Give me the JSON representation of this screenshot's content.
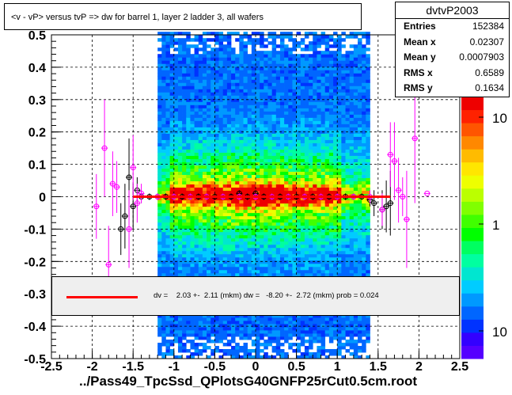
{
  "title": "<v - vP>       versus  tvP =>  dw for barrel 1, layer 2 ladder 3, all wafers",
  "footer": "../Pass49_TpcSsd_QPlotsG40GNFP25rCut0.5cm.root",
  "stats": {
    "name": "dvtvP2003",
    "rows": [
      {
        "key": "Entries",
        "value": "152384"
      },
      {
        "key": "Mean x",
        "value": "0.02307"
      },
      {
        "key": "Mean y",
        "value": "0.0007903"
      },
      {
        "key": "RMS x",
        "value": "0.6589"
      },
      {
        "key": "RMS y",
        "value": "0.1634"
      }
    ]
  },
  "fit_text": "dv =    2.03 +-  2.11 (mkm) dw =   -8.20 +-  2.72 (mkm) prob = 0.024",
  "chart_data": {
    "type": "heatmap",
    "xlim": [
      -2.5,
      2.5
    ],
    "ylim": [
      -0.5,
      0.5
    ],
    "x_ticks": [
      "-2.5",
      "-2",
      "-1.5",
      "-1",
      "-0.5",
      "0",
      "0.5",
      "1",
      "1.5",
      "2",
      "2.5"
    ],
    "y_ticks": [
      "-0.5",
      "-0.4",
      "-0.3",
      "-0.2",
      "-0.1",
      "0",
      "0.1",
      "0.2",
      "0.3",
      "0.4",
      "0.5"
    ],
    "z_scale": "log",
    "z_ticks": [
      "10",
      "1",
      "10"
    ],
    "grid": true,
    "fit_line": {
      "x": [
        -1.5,
        1.65
      ],
      "y": [
        0,
        0
      ],
      "color": "#ff0000"
    },
    "profile_black": [
      {
        "x": -1.65,
        "y": -0.1,
        "err": 0.08
      },
      {
        "x": -1.6,
        "y": -0.06,
        "err": 0.1
      },
      {
        "x": -1.55,
        "y": 0.06,
        "err": 0.12
      },
      {
        "x": -1.5,
        "y": -0.03,
        "err": 0.07
      },
      {
        "x": -1.45,
        "y": 0.02,
        "err": 0.04
      },
      {
        "x": -1.4,
        "y": 0.0,
        "err": 0.02
      },
      {
        "x": -1.3,
        "y": 0.0,
        "err": 0.01
      },
      {
        "x": -1.2,
        "y": 0.0,
        "err": 0.01
      },
      {
        "x": -1.1,
        "y": 0.0,
        "err": 0.01
      },
      {
        "x": -1.0,
        "y": 0.0,
        "err": 0.01
      },
      {
        "x": -0.9,
        "y": 0.0,
        "err": 0.01
      },
      {
        "x": -0.8,
        "y": 0.0,
        "err": 0.01
      },
      {
        "x": -0.7,
        "y": 0.0,
        "err": 0.01
      },
      {
        "x": -0.6,
        "y": 0.0,
        "err": 0.01
      },
      {
        "x": -0.5,
        "y": 0.0,
        "err": 0.01
      },
      {
        "x": -0.4,
        "y": 0.0,
        "err": 0.01
      },
      {
        "x": -0.3,
        "y": 0.0,
        "err": 0.01
      },
      {
        "x": -0.2,
        "y": 0.01,
        "err": 0.01
      },
      {
        "x": -0.1,
        "y": 0.0,
        "err": 0.01
      },
      {
        "x": 0.0,
        "y": 0.01,
        "err": 0.01
      },
      {
        "x": 0.1,
        "y": 0.0,
        "err": 0.01
      },
      {
        "x": 0.2,
        "y": 0.0,
        "err": 0.01
      },
      {
        "x": 0.3,
        "y": 0.0,
        "err": 0.01
      },
      {
        "x": 0.4,
        "y": 0.0,
        "err": 0.01
      },
      {
        "x": 0.5,
        "y": 0.0,
        "err": 0.01
      },
      {
        "x": 0.6,
        "y": 0.0,
        "err": 0.01
      },
      {
        "x": 0.7,
        "y": 0.0,
        "err": 0.01
      },
      {
        "x": 0.8,
        "y": 0.0,
        "err": 0.01
      },
      {
        "x": 0.9,
        "y": 0.0,
        "err": 0.01
      },
      {
        "x": 1.0,
        "y": 0.0,
        "err": 0.01
      },
      {
        "x": 1.1,
        "y": 0.0,
        "err": 0.01
      },
      {
        "x": 1.2,
        "y": 0.0,
        "err": 0.01
      },
      {
        "x": 1.3,
        "y": 0.0,
        "err": 0.01
      },
      {
        "x": 1.4,
        "y": -0.01,
        "err": 0.02
      },
      {
        "x": 1.45,
        "y": -0.02,
        "err": 0.04
      },
      {
        "x": 1.55,
        "y": -0.04,
        "err": 0.06
      },
      {
        "x": 1.6,
        "y": -0.03,
        "err": 0.08
      },
      {
        "x": 1.65,
        "y": -0.02,
        "err": 0.1
      }
    ],
    "profile_magenta": [
      {
        "x": -1.95,
        "y": -0.03,
        "err": 0.1
      },
      {
        "x": -1.85,
        "y": 0.15,
        "err": 0.15
      },
      {
        "x": -1.8,
        "y": -0.21,
        "err": 0.12
      },
      {
        "x": -1.75,
        "y": 0.04,
        "err": 0.1
      },
      {
        "x": -1.7,
        "y": 0.03,
        "err": 0.08
      },
      {
        "x": -1.55,
        "y": -0.1,
        "err": 0.12
      },
      {
        "x": -1.5,
        "y": 0.09,
        "err": 0.1
      },
      {
        "x": -1.45,
        "y": -0.02,
        "err": 0.06
      },
      {
        "x": -1.4,
        "y": 0.01,
        "err": 0.03
      },
      {
        "x": -1.2,
        "y": 0.0,
        "err": 0.01
      },
      {
        "x": -1.0,
        "y": 0.0,
        "err": 0.01
      },
      {
        "x": -0.8,
        "y": 0.0,
        "err": 0.01
      },
      {
        "x": -0.6,
        "y": 0.0,
        "err": 0.01
      },
      {
        "x": -0.4,
        "y": 0.0,
        "err": 0.01
      },
      {
        "x": -0.2,
        "y": 0.0,
        "err": 0.01
      },
      {
        "x": 0.0,
        "y": 0.0,
        "err": 0.01
      },
      {
        "x": 0.2,
        "y": 0.0,
        "err": 0.01
      },
      {
        "x": 0.4,
        "y": 0.0,
        "err": 0.01
      },
      {
        "x": 0.6,
        "y": 0.0,
        "err": 0.01
      },
      {
        "x": 0.8,
        "y": 0.0,
        "err": 0.01
      },
      {
        "x": 1.0,
        "y": 0.0,
        "err": 0.01
      },
      {
        "x": 1.2,
        "y": 0.0,
        "err": 0.01
      },
      {
        "x": 1.4,
        "y": 0.0,
        "err": 0.02
      },
      {
        "x": 1.55,
        "y": -0.04,
        "err": 0.05
      },
      {
        "x": 1.65,
        "y": 0.13,
        "err": 0.1
      },
      {
        "x": 1.7,
        "y": 0.11,
        "err": 0.12
      },
      {
        "x": 1.75,
        "y": 0.02,
        "err": 0.1
      },
      {
        "x": 1.85,
        "y": -0.07,
        "err": 0.15
      },
      {
        "x": 1.8,
        "y": 0.0,
        "err": 0.06
      },
      {
        "x": 1.95,
        "y": 0.18,
        "err": 0.2
      },
      {
        "x": 2.1,
        "y": 0.01,
        "err": 0.0
      }
    ]
  }
}
